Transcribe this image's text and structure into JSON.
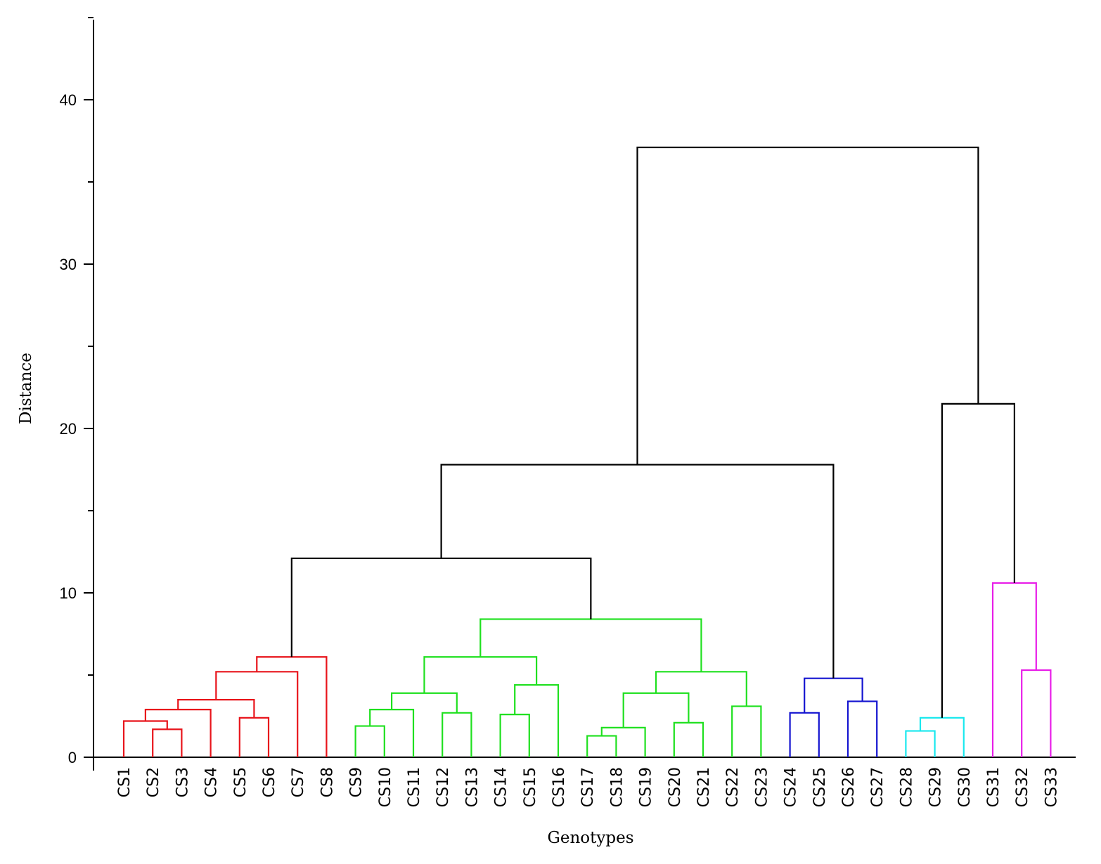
{
  "chart_data": {
    "type": "dendrogram",
    "xlabel": "Genotypes",
    "ylabel": "Distance",
    "ylim": [
      0,
      45
    ],
    "yticks": [
      0,
      10,
      20,
      30,
      40
    ],
    "leaves": [
      "CS1",
      "CS2",
      "CS3",
      "CS4",
      "CS5",
      "CS6",
      "CS7",
      "CS8",
      "CS9",
      "CS10",
      "CS11",
      "CS12",
      "CS13",
      "CS14",
      "CS15",
      "CS16",
      "CS17",
      "CS18",
      "CS19",
      "CS20",
      "CS21",
      "CS22",
      "CS23",
      "CS24",
      "CS25",
      "CS26",
      "CS27",
      "CS28",
      "CS29",
      "CS30",
      "CS31",
      "CS32",
      "CS33"
    ],
    "cluster_colors": {
      "red": "#e8141b",
      "green": "#1fe01f",
      "blue": "#1414d0",
      "cyan": "#19e8ee",
      "magenta": "#e81ee8",
      "black": "#000000"
    },
    "merges": [
      {
        "id": "m1",
        "children": [
          "CS2",
          "CS3"
        ],
        "height": 1.7,
        "color": "red"
      },
      {
        "id": "m2",
        "children": [
          "CS1",
          "m1"
        ],
        "height": 2.2,
        "color": "red"
      },
      {
        "id": "m3",
        "children": [
          "m2",
          "CS4"
        ],
        "height": 2.9,
        "color": "red"
      },
      {
        "id": "m4",
        "children": [
          "CS5",
          "CS6"
        ],
        "height": 2.4,
        "color": "red"
      },
      {
        "id": "m5",
        "children": [
          "m3",
          "m4"
        ],
        "height": 3.5,
        "color": "red"
      },
      {
        "id": "m6",
        "children": [
          "m5",
          "CS7"
        ],
        "height": 5.2,
        "color": "red"
      },
      {
        "id": "m7",
        "children": [
          "m6",
          "CS8"
        ],
        "height": 6.1,
        "color": "red"
      },
      {
        "id": "m8",
        "children": [
          "CS9",
          "CS10"
        ],
        "height": 1.9,
        "color": "green"
      },
      {
        "id": "m9",
        "children": [
          "m8",
          "CS11"
        ],
        "height": 2.9,
        "color": "green"
      },
      {
        "id": "m10",
        "children": [
          "CS12",
          "CS13"
        ],
        "height": 2.7,
        "color": "green"
      },
      {
        "id": "m11",
        "children": [
          "m9",
          "m10"
        ],
        "height": 3.9,
        "color": "green"
      },
      {
        "id": "m12",
        "children": [
          "CS14",
          "CS15"
        ],
        "height": 2.6,
        "color": "green"
      },
      {
        "id": "m13",
        "children": [
          "m12",
          "CS16"
        ],
        "height": 4.4,
        "color": "green"
      },
      {
        "id": "m14",
        "children": [
          "m11",
          "m13"
        ],
        "height": 6.1,
        "color": "green"
      },
      {
        "id": "m15",
        "children": [
          "CS17",
          "CS18"
        ],
        "height": 1.3,
        "color": "green"
      },
      {
        "id": "m16",
        "children": [
          "m15",
          "CS19"
        ],
        "height": 1.8,
        "color": "green"
      },
      {
        "id": "m17",
        "children": [
          "CS20",
          "CS21"
        ],
        "height": 2.1,
        "color": "green"
      },
      {
        "id": "m18",
        "children": [
          "m16",
          "m17"
        ],
        "height": 3.9,
        "color": "green"
      },
      {
        "id": "m19",
        "children": [
          "CS22",
          "CS23"
        ],
        "height": 3.1,
        "color": "green"
      },
      {
        "id": "m20",
        "children": [
          "m18",
          "m19"
        ],
        "height": 5.2,
        "color": "green"
      },
      {
        "id": "m21",
        "children": [
          "m14",
          "m20"
        ],
        "height": 8.4,
        "color": "green"
      },
      {
        "id": "m22",
        "children": [
          "m7",
          "m21"
        ],
        "height": 12.1,
        "color": "black"
      },
      {
        "id": "m23",
        "children": [
          "CS24",
          "CS25"
        ],
        "height": 2.7,
        "color": "blue"
      },
      {
        "id": "m24",
        "children": [
          "CS26",
          "CS27"
        ],
        "height": 3.4,
        "color": "blue"
      },
      {
        "id": "m25",
        "children": [
          "m23",
          "m24"
        ],
        "height": 4.8,
        "color": "blue"
      },
      {
        "id": "m26",
        "children": [
          "m22",
          "m25"
        ],
        "height": 17.8,
        "color": "black"
      },
      {
        "id": "m27",
        "children": [
          "CS28",
          "CS29"
        ],
        "height": 1.6,
        "color": "cyan"
      },
      {
        "id": "m28",
        "children": [
          "m27",
          "CS30"
        ],
        "height": 2.4,
        "color": "cyan"
      },
      {
        "id": "m29",
        "children": [
          "CS32",
          "CS33"
        ],
        "height": 5.3,
        "color": "magenta"
      },
      {
        "id": "m30",
        "children": [
          "CS31",
          "m29"
        ],
        "height": 10.6,
        "color": "magenta"
      },
      {
        "id": "m31",
        "children": [
          "m28",
          "m30"
        ],
        "height": 21.5,
        "color": "black"
      },
      {
        "id": "m32",
        "children": [
          "m26",
          "m31"
        ],
        "height": 37.1,
        "color": "black"
      }
    ]
  }
}
